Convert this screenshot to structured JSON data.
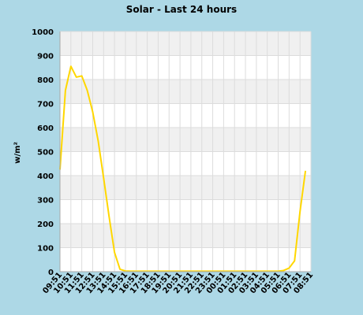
{
  "chart_data": {
    "type": "line",
    "title": "Solar - Last 24 hours",
    "xlabel": "",
    "ylabel": "w/m²",
    "ylim": [
      0,
      1000
    ],
    "yticks": [
      0,
      100,
      200,
      300,
      400,
      500,
      600,
      700,
      800,
      900,
      1000
    ],
    "categories": [
      "09:51",
      "10:51",
      "11:51",
      "12:51",
      "13:51",
      "14:51",
      "15:51",
      "16:51",
      "17:51",
      "18:51",
      "19:51",
      "20:51",
      "21:51",
      "22:51",
      "23:51",
      "00:51",
      "01:51",
      "02:51",
      "03:51",
      "04:51",
      "05:51",
      "06:51",
      "07:51",
      "08:51"
    ],
    "grid": "horizontal bands",
    "legend": "none",
    "colors": {
      "background": "#add8e6",
      "plot_band_light": "#ffffff",
      "plot_band_dark": "#f0f0f0",
      "grid": "#dcdcdc",
      "line": "#ffd700"
    },
    "series": [
      {
        "name": "",
        "points": [
          {
            "x": 0,
            "y": 425
          },
          {
            "x": 0.5,
            "y": 755
          },
          {
            "x": 1.0,
            "y": 855
          },
          {
            "x": 1.5,
            "y": 810
          },
          {
            "x": 2.0,
            "y": 815
          },
          {
            "x": 2.5,
            "y": 755
          },
          {
            "x": 3.0,
            "y": 665
          },
          {
            "x": 3.5,
            "y": 545
          },
          {
            "x": 4.0,
            "y": 390
          },
          {
            "x": 4.5,
            "y": 230
          },
          {
            "x": 5.0,
            "y": 80
          },
          {
            "x": 5.5,
            "y": 10
          },
          {
            "x": 6.0,
            "y": 3
          },
          {
            "x": 6.5,
            "y": 2
          },
          {
            "x": 7.0,
            "y": 2
          },
          {
            "x": 8,
            "y": 2
          },
          {
            "x": 9,
            "y": 2
          },
          {
            "x": 10,
            "y": 2
          },
          {
            "x": 11,
            "y": 2
          },
          {
            "x": 12,
            "y": 2
          },
          {
            "x": 13,
            "y": 2
          },
          {
            "x": 14,
            "y": 2
          },
          {
            "x": 15,
            "y": 2
          },
          {
            "x": 16,
            "y": 2
          },
          {
            "x": 17,
            "y": 2
          },
          {
            "x": 18,
            "y": 2
          },
          {
            "x": 19,
            "y": 2
          },
          {
            "x": 20,
            "y": 2
          },
          {
            "x": 20.5,
            "y": 5
          },
          {
            "x": 21.0,
            "y": 15
          },
          {
            "x": 21.5,
            "y": 45
          },
          {
            "x": 22.0,
            "y": 250
          },
          {
            "x": 22.5,
            "y": 420
          }
        ]
      }
    ]
  }
}
